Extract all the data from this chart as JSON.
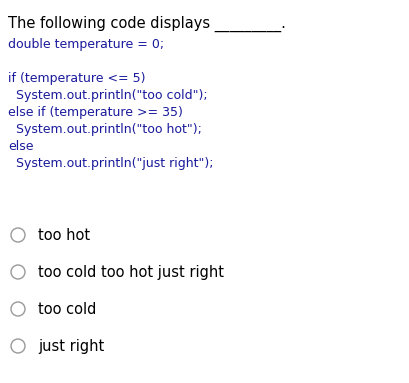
{
  "bg_color": "#ffffff",
  "header_text": "The following code displays _________.",
  "header_color": "#000000",
  "header_fontsize": 10.5,
  "code_lines": [
    "double temperature = 0;",
    "",
    "if (temperature <= 5)",
    "  System.out.println(\"too cold\");",
    "else if (temperature >= 35)",
    "  System.out.println(\"too hot\");",
    "else",
    "  System.out.println(\"just right\");"
  ],
  "code_color": "#1a1a9c",
  "code_fontsize": 9.0,
  "options": [
    "too hot",
    "too cold too hot just right",
    "too cold",
    "just right"
  ],
  "option_fontsize": 10.5,
  "option_color": "#000000",
  "circle_color": "#999999",
  "circle_linewidth": 1.0
}
